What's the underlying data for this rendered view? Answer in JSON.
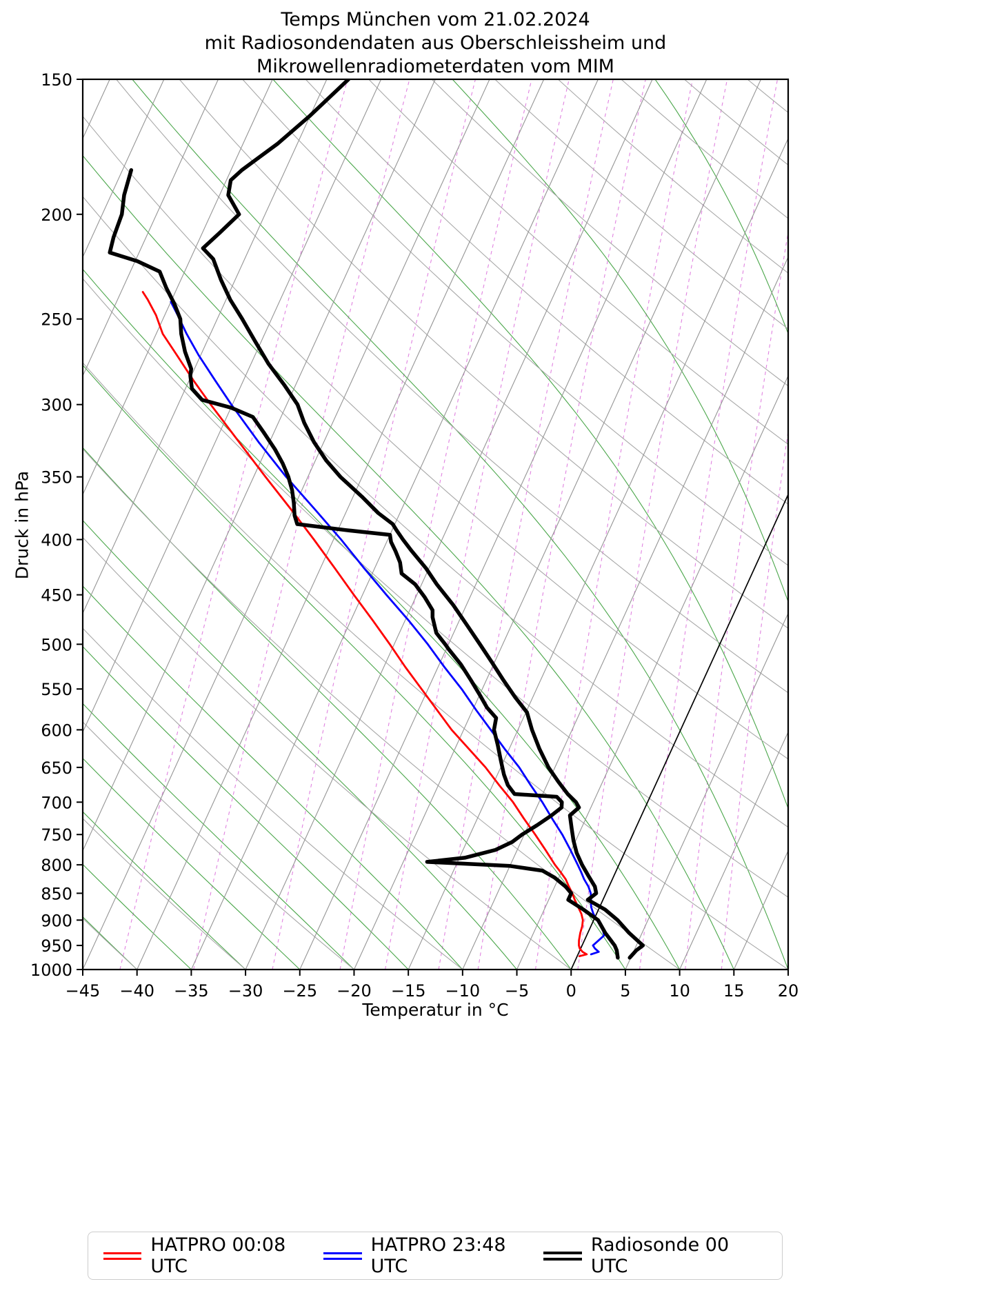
{
  "title": {
    "line1": "Temps München vom 21.02.2024",
    "line2": "mit Radiosondendaten aus Oberschleissheim und",
    "line3": "Mikrowellenradiometerdaten vom MIM"
  },
  "legend": [
    {
      "label": "HATPRO 00:08 UTC",
      "color": "#ff0000"
    },
    {
      "label": "HATPRO 23:48 UTC",
      "color": "#0000ff"
    },
    {
      "label": "Radiosonde 00 UTC",
      "color": "#000000"
    }
  ],
  "chart_data": {
    "type": "line",
    "chart_kind": "skewT-logP-sounding",
    "title": "Temps München vom 21.02.2024 mit Radiosondendaten aus Oberschleissheim und Mikrowellenradiometerdaten vom MIM",
    "xlabel": "Temperatur in °C",
    "ylabel": "Druck in hPa",
    "x_ticks": [
      -45,
      -40,
      -35,
      -30,
      -25,
      -20,
      -15,
      -10,
      -5,
      0,
      5,
      10,
      15,
      20
    ],
    "y_ticks": [
      150,
      200,
      250,
      300,
      350,
      400,
      450,
      500,
      550,
      600,
      650,
      700,
      750,
      800,
      850,
      900,
      950,
      1000
    ],
    "x_range_C": [
      -45,
      20
    ],
    "pressure_range_hPa": [
      1000,
      150
    ],
    "skew_deg_C_per_decade": 45.5,
    "grid": true,
    "legend_position": "bottom",
    "background": {
      "isotherm_step_C": 5,
      "isotherm_color": "#949494",
      "freezing_isotherm_C": 0,
      "freezing_isotherm_color": "#000000",
      "dry_adiabat_step_C": 10,
      "dry_adiabat_color": "#a8a8a8",
      "moist_adiabat_step_C": 5,
      "moist_adiabat_color": "#4aa64a",
      "mixing_ratio_g_per_kg": [
        0.1,
        0.2,
        0.4,
        0.7,
        1,
        1.5,
        2,
        3,
        4,
        6,
        8,
        10,
        15
      ],
      "mixing_ratio_color": "#e082e0"
    },
    "series": [
      {
        "id": "hatpro_0008",
        "name": "HATPRO 00:08 UTC",
        "variable": "temperature",
        "color": "#ff0000",
        "width": 2.8,
        "points_p_hPa_T_C": [
          [
            972,
            0.2
          ],
          [
            968,
            0.8
          ],
          [
            963,
            0.3
          ],
          [
            956,
            -0.1
          ],
          [
            950,
            -0.3
          ],
          [
            940,
            -0.5
          ],
          [
            925,
            -0.7
          ],
          [
            912,
            -0.8
          ],
          [
            900,
            -1.0
          ],
          [
            888,
            -1.4
          ],
          [
            875,
            -2.0
          ],
          [
            862,
            -2.6
          ],
          [
            850,
            -3.1
          ],
          [
            838,
            -3.7
          ],
          [
            825,
            -4.3
          ],
          [
            812,
            -5.1
          ],
          [
            800,
            -5.9
          ],
          [
            775,
            -7.4
          ],
          [
            750,
            -9.0
          ],
          [
            725,
            -10.7
          ],
          [
            700,
            -12.4
          ],
          [
            675,
            -14.4
          ],
          [
            650,
            -16.4
          ],
          [
            625,
            -18.7
          ],
          [
            600,
            -21.1
          ],
          [
            575,
            -23.3
          ],
          [
            550,
            -25.6
          ],
          [
            525,
            -28.0
          ],
          [
            500,
            -30.4
          ],
          [
            475,
            -33.0
          ],
          [
            450,
            -35.8
          ],
          [
            425,
            -38.7
          ],
          [
            400,
            -41.8
          ],
          [
            375,
            -45.2
          ],
          [
            350,
            -48.9
          ],
          [
            325,
            -52.8
          ],
          [
            300,
            -57.0
          ],
          [
            285,
            -59.6
          ],
          [
            270,
            -62.2
          ],
          [
            258,
            -64.4
          ],
          [
            248,
            -65.8
          ],
          [
            240,
            -67.2
          ],
          [
            236,
            -68.0
          ]
        ]
      },
      {
        "id": "hatpro_2348",
        "name": "HATPRO 23:48 UTC",
        "variable": "temperature",
        "color": "#0000ff",
        "width": 2.8,
        "points_p_hPa_T_C": [
          [
            968,
            1.2
          ],
          [
            963,
            1.8
          ],
          [
            956,
            1.3
          ],
          [
            950,
            1.0
          ],
          [
            940,
            1.3
          ],
          [
            930,
            1.6
          ],
          [
            920,
            1.3
          ],
          [
            910,
            0.8
          ],
          [
            900,
            0.3
          ],
          [
            888,
            -0.3
          ],
          [
            875,
            -0.8
          ],
          [
            862,
            -1.1
          ],
          [
            850,
            -1.4
          ],
          [
            838,
            -1.9
          ],
          [
            825,
            -2.6
          ],
          [
            812,
            -3.2
          ],
          [
            800,
            -3.8
          ],
          [
            775,
            -5.1
          ],
          [
            750,
            -6.5
          ],
          [
            725,
            -8.1
          ],
          [
            700,
            -9.7
          ],
          [
            675,
            -11.5
          ],
          [
            650,
            -13.3
          ],
          [
            625,
            -15.4
          ],
          [
            600,
            -17.5
          ],
          [
            575,
            -19.7
          ],
          [
            550,
            -21.9
          ],
          [
            525,
            -24.4
          ],
          [
            500,
            -26.9
          ],
          [
            475,
            -29.7
          ],
          [
            450,
            -32.8
          ],
          [
            425,
            -36.0
          ],
          [
            400,
            -39.3
          ],
          [
            375,
            -43.0
          ],
          [
            350,
            -47.0
          ],
          [
            325,
            -51.0
          ],
          [
            300,
            -55.1
          ],
          [
            285,
            -57.6
          ],
          [
            270,
            -60.2
          ],
          [
            258,
            -62.2
          ],
          [
            248,
            -63.8
          ],
          [
            241,
            -65.0
          ]
        ]
      },
      {
        "id": "radiosonde_temperature",
        "name": "Radiosonde 00 UTC (Temperatur)",
        "variable": "temperature",
        "color": "#000000",
        "width": 5.5,
        "points_p_hPa_T_C": [
          [
            975,
            4.9
          ],
          [
            960,
            5.2
          ],
          [
            950,
            5.6
          ],
          [
            925,
            3.8
          ],
          [
            900,
            2.2
          ],
          [
            880,
            0.6
          ],
          [
            862,
            -1.4
          ],
          [
            850,
            -0.9
          ],
          [
            838,
            -1.3
          ],
          [
            820,
            -2.3
          ],
          [
            800,
            -3.4
          ],
          [
            780,
            -4.4
          ],
          [
            760,
            -5.2
          ],
          [
            740,
            -5.9
          ],
          [
            720,
            -6.6
          ],
          [
            708,
            -6.1
          ],
          [
            700,
            -6.6
          ],
          [
            688,
            -7.7
          ],
          [
            670,
            -9.1
          ],
          [
            650,
            -10.6
          ],
          [
            625,
            -12.2
          ],
          [
            600,
            -13.7
          ],
          [
            578,
            -14.9
          ],
          [
            560,
            -16.6
          ],
          [
            540,
            -18.4
          ],
          [
            520,
            -20.2
          ],
          [
            500,
            -22.1
          ],
          [
            480,
            -24.1
          ],
          [
            460,
            -26.2
          ],
          [
            440,
            -28.6
          ],
          [
            425,
            -30.3
          ],
          [
            410,
            -32.3
          ],
          [
            400,
            -33.6
          ],
          [
            392,
            -34.6
          ],
          [
            387,
            -35.2
          ],
          [
            378,
            -37.0
          ],
          [
            365,
            -39.2
          ],
          [
            350,
            -42.0
          ],
          [
            338,
            -44.0
          ],
          [
            325,
            -45.9
          ],
          [
            312,
            -47.6
          ],
          [
            300,
            -49.0
          ],
          [
            288,
            -51.0
          ],
          [
            275,
            -53.4
          ],
          [
            262,
            -55.6
          ],
          [
            250,
            -57.7
          ],
          [
            240,
            -59.6
          ],
          [
            230,
            -61.3
          ],
          [
            220,
            -62.9
          ],
          [
            215,
            -64.3
          ],
          [
            208,
            -63.4
          ],
          [
            200,
            -62.4
          ],
          [
            192,
            -64.2
          ],
          [
            186,
            -64.6
          ],
          [
            182,
            -64.0
          ],
          [
            172,
            -61.8
          ],
          [
            162,
            -60.0
          ],
          [
            150,
            -58.0
          ]
        ]
      },
      {
        "id": "radiosonde_dewpoint",
        "name": "Radiosonde 00 UTC (Taupunkt)",
        "variable": "dewpoint",
        "color": "#000000",
        "width": 5.5,
        "points_p_hPa_T_C": [
          [
            975,
            3.8
          ],
          [
            960,
            3.4
          ],
          [
            950,
            3.0
          ],
          [
            925,
            1.6
          ],
          [
            900,
            0.4
          ],
          [
            880,
            -1.4
          ],
          [
            862,
            -3.2
          ],
          [
            850,
            -3.2
          ],
          [
            838,
            -4.0
          ],
          [
            822,
            -5.4
          ],
          [
            810,
            -6.8
          ],
          [
            802,
            -10.0
          ],
          [
            795,
            -17.8
          ],
          [
            788,
            -14.5
          ],
          [
            775,
            -12.0
          ],
          [
            762,
            -10.8
          ],
          [
            750,
            -10.2
          ],
          [
            735,
            -9.2
          ],
          [
            720,
            -8.3
          ],
          [
            708,
            -7.7
          ],
          [
            700,
            -7.9
          ],
          [
            692,
            -8.6
          ],
          [
            688,
            -12.6
          ],
          [
            675,
            -13.6
          ],
          [
            660,
            -14.4
          ],
          [
            640,
            -15.3
          ],
          [
            620,
            -16.2
          ],
          [
            600,
            -17.2
          ],
          [
            585,
            -17.5
          ],
          [
            572,
            -18.8
          ],
          [
            558,
            -19.9
          ],
          [
            540,
            -21.4
          ],
          [
            522,
            -23.0
          ],
          [
            505,
            -24.8
          ],
          [
            500,
            -25.3
          ],
          [
            488,
            -26.6
          ],
          [
            472,
            -27.6
          ],
          [
            465,
            -27.9
          ],
          [
            452,
            -29.2
          ],
          [
            440,
            -30.6
          ],
          [
            430,
            -32.3
          ],
          [
            420,
            -32.9
          ],
          [
            410,
            -33.8
          ],
          [
            402,
            -34.6
          ],
          [
            396,
            -35.0
          ],
          [
            392,
            -39.3
          ],
          [
            387,
            -44.0
          ],
          [
            380,
            -44.6
          ],
          [
            370,
            -45.2
          ],
          [
            360,
            -45.9
          ],
          [
            350,
            -46.8
          ],
          [
            340,
            -47.9
          ],
          [
            330,
            -49.2
          ],
          [
            318,
            -51.0
          ],
          [
            308,
            -52.6
          ],
          [
            302,
            -55.0
          ],
          [
            297,
            -58.0
          ],
          [
            290,
            -59.4
          ],
          [
            282,
            -60.1
          ],
          [
            278,
            -60.3
          ],
          [
            268,
            -61.6
          ],
          [
            258,
            -62.7
          ],
          [
            250,
            -63.4
          ],
          [
            242,
            -64.6
          ],
          [
            234,
            -66.0
          ],
          [
            226,
            -67.3
          ],
          [
            221,
            -69.8
          ],
          [
            217,
            -72.7
          ],
          [
            210,
            -73.0
          ],
          [
            200,
            -73.2
          ],
          [
            192,
            -73.8
          ],
          [
            182,
            -74.2
          ]
        ]
      }
    ]
  }
}
